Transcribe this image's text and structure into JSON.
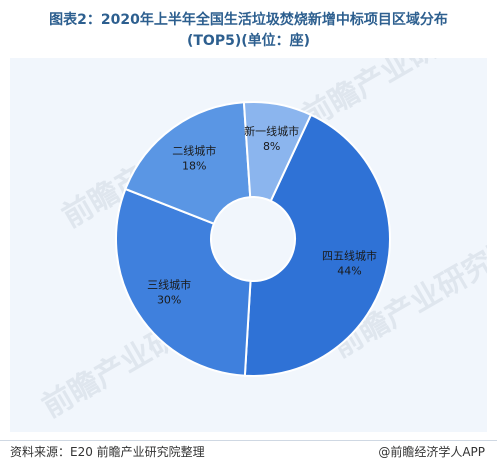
{
  "title_line1": "图表2：2020年上半年全国生活垃圾焚烧新增中标项目区域分布",
  "title_line2": "(TOP5)(单位：座)",
  "chart_data": {
    "type": "pie",
    "donut": true,
    "categories": [
      "四五线城市",
      "三线城市",
      "二线城市",
      "新一线城市"
    ],
    "values": [
      44,
      30,
      18,
      8
    ],
    "labels": [
      "44%",
      "30%",
      "18%",
      "8%"
    ],
    "colors": [
      "#2f72d6",
      "#3f80dd",
      "#5a96e4",
      "#8bb5ee"
    ]
  },
  "watermark": "前瞻产业研究院",
  "footer": {
    "source": "资料来源：E20  前瞻产业研究院整理",
    "brand": "@前瞻经济学人APP"
  }
}
